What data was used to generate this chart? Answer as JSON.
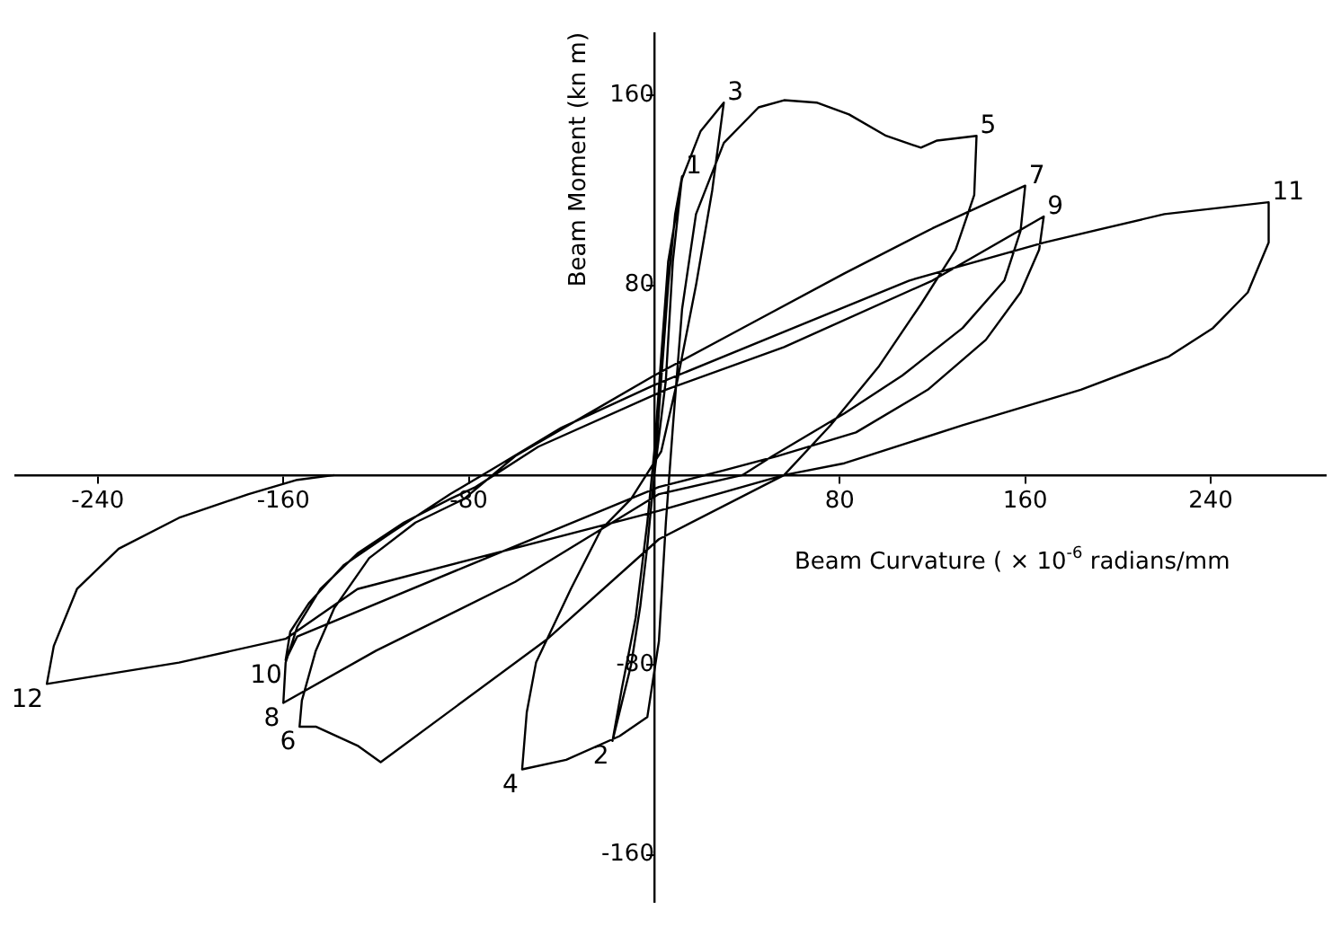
{
  "chart_data": {
    "type": "line",
    "xlabel": "Beam Curvature ( × 10$^{-6}$ radians/mm",
    "ylabel": "Beam Moment (kn m)",
    "xlim": [
      -276,
      290
    ],
    "ylim": [
      -180,
      186
    ],
    "xticks": [
      -240,
      -160,
      -80,
      80,
      160,
      240
    ],
    "yticks": [
      -160,
      -80,
      80,
      160
    ],
    "marker": "none",
    "line_style": "solid",
    "series": [
      {
        "color": "#000000",
        "x": [
          0,
          3,
          6,
          9,
          12,
          8,
          5,
          0,
          -3,
          -6,
          -10,
          -18,
          -14,
          -8,
          -3,
          0,
          3,
          6,
          12,
          20,
          30,
          25,
          18,
          10,
          3,
          -10,
          -23,
          -36,
          -51,
          -55,
          -57,
          -38,
          -15,
          -3,
          2,
          5,
          8,
          12,
          18,
          30,
          45,
          56,
          70,
          84,
          100,
          115,
          122,
          139,
          138,
          130,
          115,
          97,
          76,
          56,
          2,
          -46,
          -118,
          -128,
          -146,
          -153,
          -152,
          -146,
          -138,
          -123,
          -103,
          -82,
          -60,
          -30,
          0,
          40,
          82,
          120,
          160,
          158,
          151,
          133,
          107,
          82,
          51,
          38,
          2,
          -60,
          -120,
          -160,
          -159,
          -154,
          -144,
          -128,
          -108,
          -88,
          -77,
          -50,
          5,
          56,
          120,
          168,
          166,
          158,
          143,
          118,
          87,
          53,
          30,
          2,
          -80,
          -154,
          -159,
          -157,
          -149,
          -134,
          -113,
          -88,
          -69,
          -40,
          0,
          60,
          110,
          168,
          220,
          265,
          265,
          256,
          241,
          222,
          184,
          133,
          82,
          56,
          2,
          -128,
          -159,
          -205,
          -262,
          -259,
          -249,
          -231,
          -205,
          -175,
          -154,
          -138
        ],
        "values": [
          0,
          40,
          80,
          110,
          126,
          90,
          40,
          0,
          -30,
          -55,
          -80,
          -112,
          -90,
          -60,
          -20,
          10,
          50,
          90,
          125,
          145,
          157,
          120,
          80,
          40,
          10,
          -10,
          -23,
          -48,
          -79,
          -100,
          -124,
          -120,
          -110,
          -102,
          -70,
          -20,
          20,
          70,
          110,
          140,
          155,
          158,
          157,
          152,
          143,
          138,
          141,
          143,
          118,
          95,
          72,
          46,
          21,
          0,
          -27,
          -69,
          -121,
          -114,
          -106,
          -106,
          -95,
          -74,
          -56,
          -35,
          -20,
          -10,
          8,
          25,
          42,
          63,
          85,
          104,
          122,
          103,
          82,
          62,
          42,
          26,
          8,
          0,
          -8,
          -45,
          -74,
          -96,
          -79,
          -64,
          -48,
          -33,
          -20,
          -10,
          -5,
          12,
          36,
          54,
          82,
          109,
          95,
          77,
          57,
          36,
          18,
          8,
          2,
          -5,
          -38,
          -68,
          -78,
          -66,
          -54,
          -38,
          -24,
          -8,
          3,
          20,
          38,
          62,
          82,
          98,
          110,
          115,
          98,
          77,
          62,
          50,
          36,
          21,
          5,
          0,
          -15,
          -48,
          -69,
          -79,
          -88,
          -72,
          -48,
          -31,
          -18,
          -8,
          -2,
          0
        ]
      }
    ],
    "annotations": [
      {
        "text": "1",
        "x": 12,
        "y": 126
      },
      {
        "text": "2",
        "x": -18,
        "y": -112
      },
      {
        "text": "3",
        "x": 30,
        "y": 157
      },
      {
        "text": "4",
        "x": -57,
        "y": -124
      },
      {
        "text": "5",
        "x": 139,
        "y": 143
      },
      {
        "text": "6",
        "x": -153,
        "y": -106
      },
      {
        "text": "7",
        "x": 160,
        "y": 122
      },
      {
        "text": "8",
        "x": -160,
        "y": -96
      },
      {
        "text": "9",
        "x": 168,
        "y": 109
      },
      {
        "text": "10",
        "x": -159,
        "y": -78
      },
      {
        "text": "11",
        "x": 265,
        "y": 115
      },
      {
        "text": "12",
        "x": -262,
        "y": -88
      }
    ]
  }
}
